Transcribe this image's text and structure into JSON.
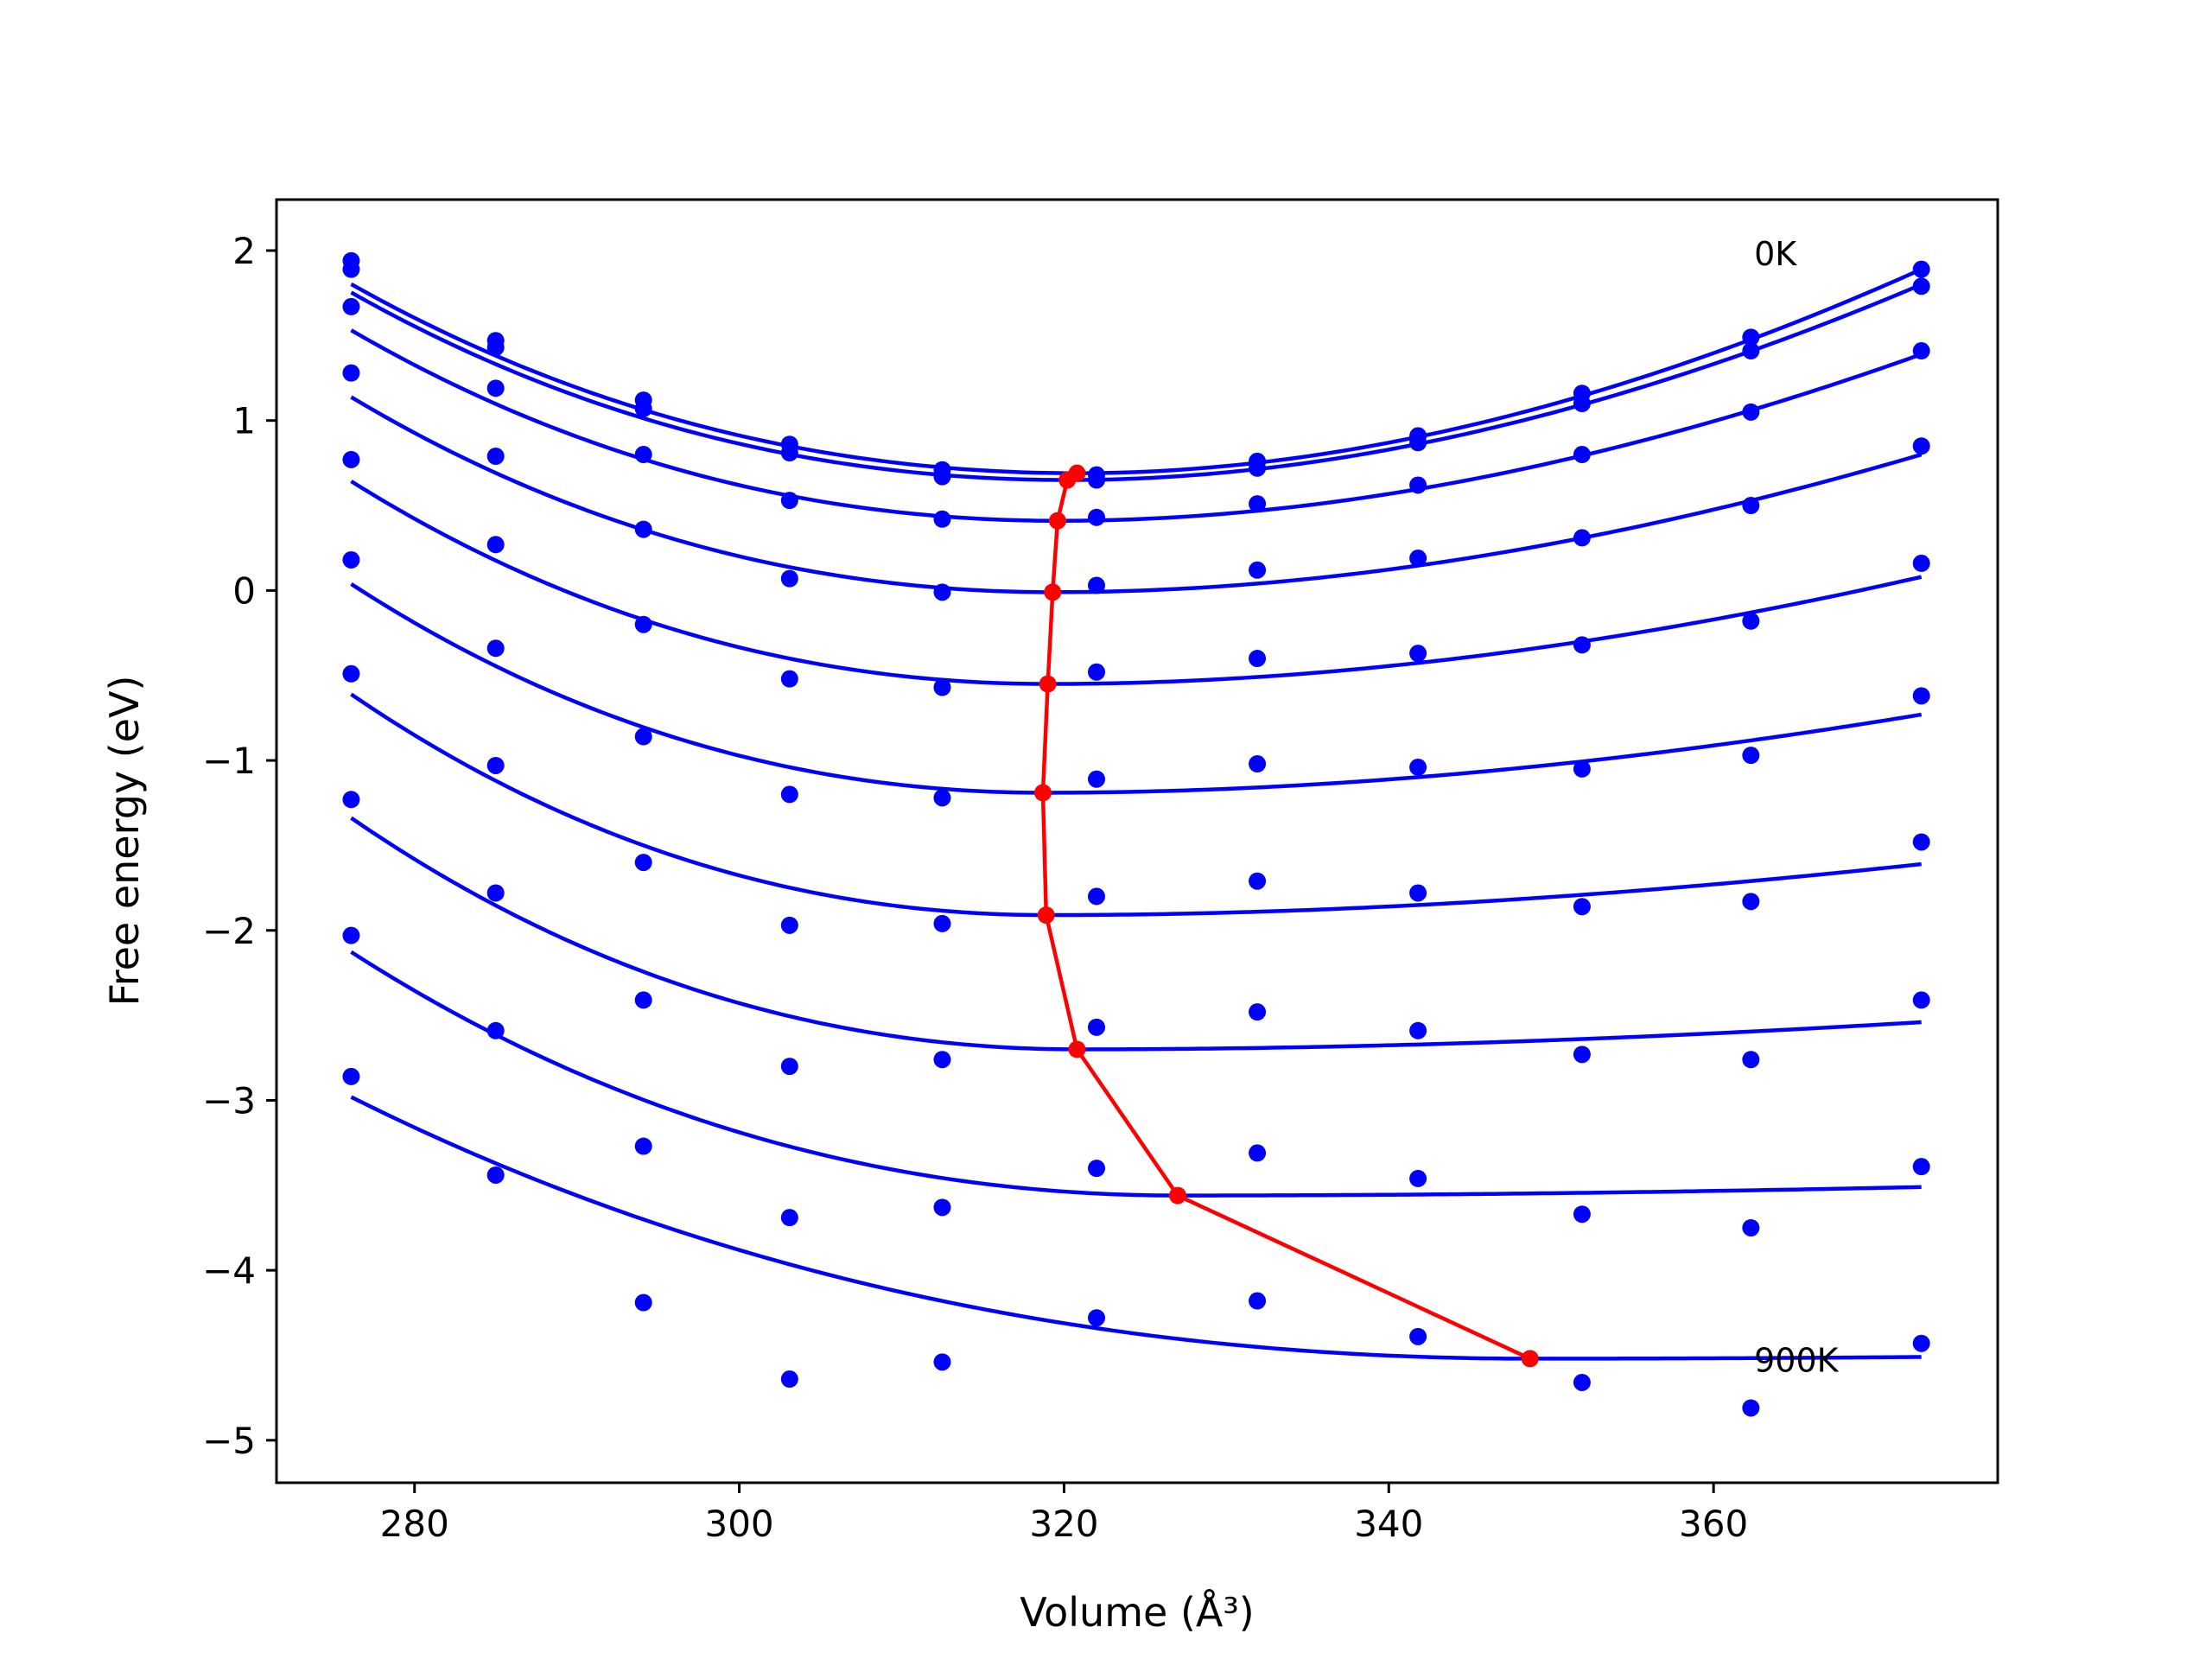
{
  "chart_data": {
    "type": "line",
    "xlabel": "Volume (Å³)",
    "ylabel": "Free energy (eV)",
    "xlim": [
      271.5,
      377.5
    ],
    "ylim": [
      -5.25,
      2.3
    ],
    "xticks": [
      280,
      300,
      320,
      340,
      360
    ],
    "yticks": [
      2,
      1,
      0,
      -1,
      -2,
      -3,
      -4,
      -5
    ],
    "xtick_labels": [
      "280",
      "300",
      "320",
      "340",
      "360"
    ],
    "ytick_labels": [
      "2",
      "1",
      "0",
      "−1",
      "−2",
      "−3",
      "−4",
      "−5"
    ],
    "grid": false,
    "annotations": [
      {
        "text": "0K",
        "x": 362.5,
        "y": 1.98
      },
      {
        "text": "900K",
        "x": 362.5,
        "y": -4.53
      }
    ],
    "fit_color": "#0000ff",
    "points_color": "#0000ff",
    "min_color": "#ff0000",
    "x_points": [
      276.1,
      285.0,
      294.1,
      303.1,
      312.5,
      322.0,
      331.9,
      341.8,
      351.9,
      362.3,
      372.8
    ],
    "series": [
      {
        "points": [
          1.94,
          1.47,
          1.12,
          0.86,
          0.71,
          0.68,
          0.76,
          0.91,
          1.16,
          1.49,
          1.89
        ],
        "curve": {
          "vmin": 320.8,
          "emin": 0.69,
          "left": 1.94,
          "right": 1.89
        }
      },
      {
        "points": [
          1.89,
          1.43,
          1.07,
          0.81,
          0.67,
          0.65,
          0.72,
          0.87,
          1.1,
          1.41,
          1.79
        ],
        "curve": {
          "vmin": 320.2,
          "emin": 0.65,
          "left": 1.89,
          "right": 1.8
        }
      },
      {
        "points": [
          1.67,
          1.19,
          0.8,
          0.53,
          0.42,
          0.43,
          0.51,
          0.62,
          0.8,
          1.05,
          1.41
        ],
        "curve": {
          "vmin": 319.6,
          "emin": 0.41,
          "left": 1.67,
          "right": 1.39
        }
      },
      {
        "points": [
          1.28,
          0.79,
          0.36,
          0.07,
          -0.01,
          0.03,
          0.12,
          0.19,
          0.31,
          0.5,
          0.85
        ],
        "curve": {
          "vmin": 319.3,
          "emin": -0.01,
          "left": 1.28,
          "right": 0.8
        }
      },
      {
        "points": [
          0.77,
          0.27,
          -0.2,
          -0.52,
          -0.57,
          -0.48,
          -0.4,
          -0.37,
          -0.32,
          -0.18,
          0.16
        ],
        "curve": {
          "vmin": 319.0,
          "emin": -0.55,
          "left": 0.79,
          "right": 0.08
        }
      },
      {
        "points": [
          0.18,
          -0.34,
          -0.86,
          -1.2,
          -1.22,
          -1.11,
          -1.02,
          -1.04,
          -1.05,
          -0.97,
          -0.62
        ],
        "curve": {
          "vmin": 318.7,
          "emin": -1.19,
          "left": 0.19,
          "right": -0.73
        }
      },
      {
        "points": [
          -0.49,
          -1.03,
          -1.6,
          -1.97,
          -1.96,
          -1.8,
          -1.71,
          -1.78,
          -1.86,
          -1.83,
          -1.48
        ],
        "curve": {
          "vmin": 318.9,
          "emin": -1.91,
          "left": -0.45,
          "right": -1.61
        }
      },
      {
        "points": [
          -1.23,
          -1.78,
          -2.41,
          -2.8,
          -2.76,
          -2.57,
          -2.48,
          -2.59,
          -2.73,
          -2.76,
          -2.41
        ],
        "curve": {
          "vmin": 320.8,
          "emin": -2.7,
          "left": -1.17,
          "right": -2.54
        }
      },
      {
        "points": [
          -2.03,
          -2.59,
          -3.27,
          -3.69,
          -3.63,
          -3.4,
          -3.31,
          -3.46,
          -3.67,
          -3.75,
          -3.39
        ],
        "curve": {
          "vmin": 327.0,
          "emin": -3.56,
          "left": -1.95,
          "right": -3.51
        }
      },
      {
        "points": [
          -2.86,
          -3.44,
          -4.19,
          -4.64,
          -4.54,
          -4.28,
          -4.18,
          -4.39,
          -4.66,
          -4.81,
          -4.43
        ],
        "curve": {
          "vmin": 348.7,
          "emin": -4.52,
          "left": -2.79,
          "right": -4.51
        }
      }
    ],
    "minima": {
      "x": [
        320.8,
        320.2,
        319.6,
        319.3,
        319.0,
        318.7,
        318.9,
        320.8,
        327.0,
        348.7
      ],
      "y": [
        0.69,
        0.65,
        0.41,
        -0.01,
        -0.55,
        -1.19,
        -1.91,
        -2.7,
        -3.56,
        -4.52
      ]
    }
  }
}
